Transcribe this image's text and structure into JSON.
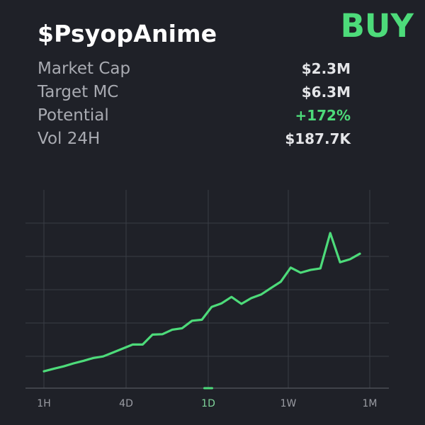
{
  "header": {
    "token_name": "$PsyopAnime",
    "action_label": "BUY"
  },
  "stats": [
    {
      "label": "Market Cap",
      "value": "$2.3M",
      "tone": "neutral"
    },
    {
      "label": "Target MC",
      "value": "$6.3M",
      "tone": "neutral"
    },
    {
      "label": "Potential",
      "value": "+172%",
      "tone": "positive"
    },
    {
      "label": "Vol 24H",
      "value": "$187.7K",
      "tone": "neutral"
    }
  ],
  "timeframes": {
    "options": [
      "1H",
      "4D",
      "1D",
      "1W",
      "1M"
    ],
    "selected": "1D"
  },
  "colors": {
    "background": "#1f2128",
    "accent": "#4ddb7a",
    "grid": "#3a3d45"
  },
  "chart_data": {
    "type": "line",
    "grid": true,
    "ylim": [
      0,
      1
    ],
    "series": [
      {
        "values": [
          0.085,
          0.098,
          0.11,
          0.125,
          0.138,
          0.152,
          0.16,
          0.18,
          0.2,
          0.22,
          0.22,
          0.27,
          0.272,
          0.295,
          0.302,
          0.34,
          0.345,
          0.41,
          0.428,
          0.46,
          0.425,
          0.454,
          0.472,
          0.505,
          0.537,
          0.608,
          0.582,
          0.596,
          0.604,
          0.782,
          0.635,
          0.65,
          0.678
        ]
      }
    ]
  }
}
